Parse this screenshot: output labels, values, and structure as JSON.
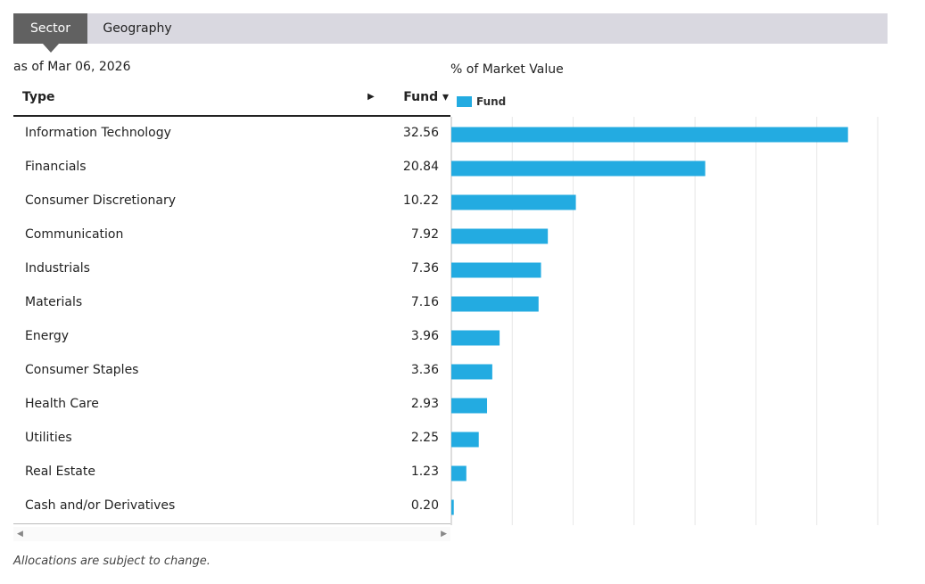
{
  "tabs": [
    {
      "label": "Sector",
      "active": true
    },
    {
      "label": "Geography",
      "active": false
    }
  ],
  "as_of": "as of Mar 06, 2026",
  "table": {
    "header_type": "Type",
    "header_fund": "Fund ▾",
    "sort_arrow": "▶"
  },
  "footnote": "Allocations are subject to change.",
  "chart_data": {
    "type": "bar",
    "orientation": "horizontal",
    "title": "% of Market Value",
    "categories": [
      "Information Technology",
      "Financials",
      "Consumer Discretionary",
      "Communication",
      "Industrials",
      "Materials",
      "Energy",
      "Consumer Staples",
      "Health Care",
      "Utilities",
      "Real Estate",
      "Cash and/or Derivatives"
    ],
    "series": [
      {
        "name": "Fund",
        "color": "#23abe1",
        "values": [
          32.56,
          20.84,
          10.22,
          7.92,
          7.36,
          7.16,
          3.96,
          3.36,
          2.93,
          2.25,
          1.23,
          0.2
        ],
        "labels": [
          "32.56",
          "20.84",
          "10.22",
          "7.92",
          "7.36",
          "7.16",
          "3.96",
          "3.36",
          "2.93",
          "2.25",
          "1.23",
          "0.20"
        ]
      }
    ],
    "xlim": [
      0,
      35
    ],
    "grid": true,
    "legend": "top-left"
  }
}
